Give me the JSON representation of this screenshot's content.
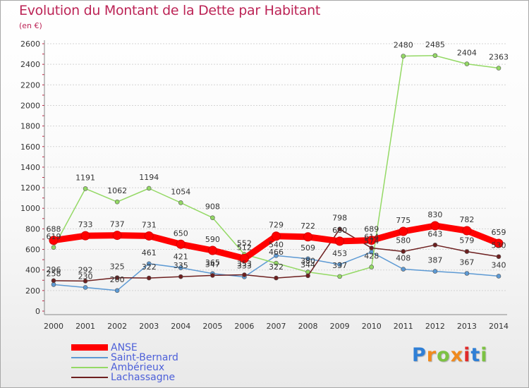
{
  "chart_data": {
    "type": "line",
    "title": "Evolution du Montant de la Dette par Habitant",
    "subtitle": "(en €)",
    "xlabel": "",
    "ylabel": "",
    "ylim": [
      0,
      2600
    ],
    "yticks": [
      0,
      200,
      400,
      600,
      800,
      1000,
      1200,
      1400,
      1600,
      1800,
      2000,
      2200,
      2400,
      2600
    ],
    "grid": "horizontal",
    "x": [
      "2000",
      "2001",
      "2002",
      "2003",
      "2004",
      "2005",
      "2006",
      "2007",
      "2008",
      "2009",
      "2010",
      "2011",
      "2012",
      "2013",
      "2014"
    ],
    "series": [
      {
        "name": "ANSE",
        "color": "#ff0000",
        "values": [
          688,
          733,
          737,
          731,
          650,
          590,
          512,
          729,
          722,
          680,
          689,
          775,
          830,
          782,
          659
        ]
      },
      {
        "name": "Saint-Bernard",
        "color": "#5d9ad4",
        "values": [
          258,
          230,
          200,
          461,
          421,
          365,
          333,
          540,
          509,
          453,
          574,
          408,
          387,
          367,
          340
        ]
      },
      {
        "name": "Ambérieux",
        "color": "#94d965",
        "values": [
          619,
          1191,
          1062,
          1194,
          1054,
          908,
          552,
          466,
          380,
          337,
          428,
          2480,
          2485,
          2404,
          2363
        ]
      },
      {
        "name": "Lachassagne",
        "color": "#6d1f1f",
        "values": [
          296,
          292,
          325,
          322,
          335,
          347,
          353,
          322,
          344,
          798,
          614,
          580,
          643,
          579,
          530
        ]
      }
    ]
  },
  "brand": {
    "letters": [
      "P",
      "r",
      "o",
      "x",
      "i",
      "t",
      "i"
    ],
    "colors": [
      "#2f7fd6",
      "#f08a1e",
      "#7cc242",
      "#f08a1e",
      "#e02a2a",
      "#2f7fd6",
      "#7cc242"
    ]
  }
}
